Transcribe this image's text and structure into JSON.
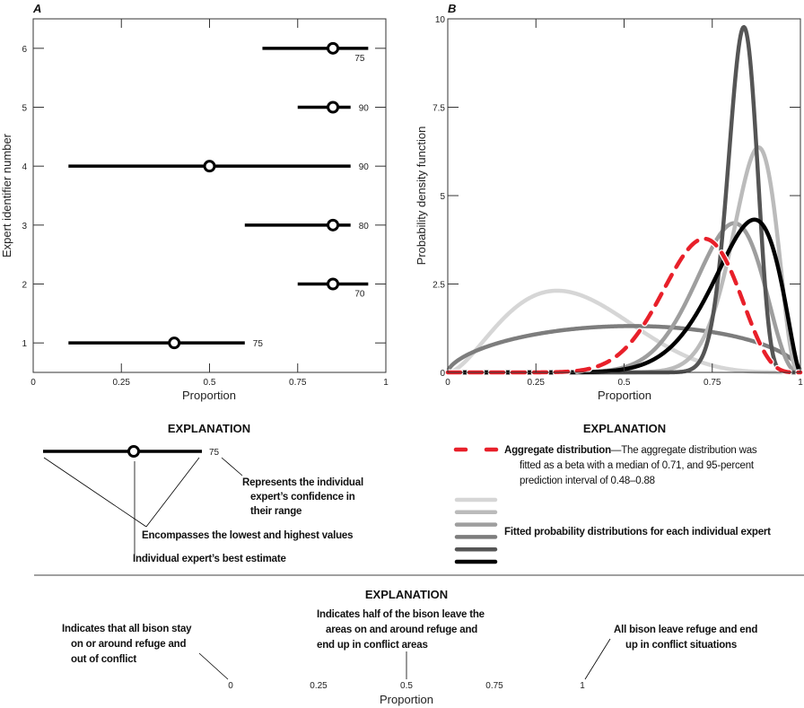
{
  "chart_data": [
    {
      "panel_label": "A",
      "type": "interval",
      "xlabel": "Proportion",
      "ylabel": "Expert identifier number",
      "xlim": [
        0,
        1
      ],
      "ylim": [
        0.5,
        6.5
      ],
      "xticks": [
        "0",
        "0.25",
        "0.5",
        "0.75",
        "1"
      ],
      "yticks": [
        "1",
        "2",
        "3",
        "4",
        "5",
        "6"
      ],
      "experts": [
        {
          "id": 1,
          "low": 0.1,
          "high": 0.6,
          "best": 0.4,
          "confidence": "75"
        },
        {
          "id": 2,
          "low": 0.75,
          "high": 0.95,
          "best": 0.85,
          "confidence": "70"
        },
        {
          "id": 3,
          "low": 0.6,
          "high": 0.9,
          "best": 0.85,
          "confidence": "80"
        },
        {
          "id": 4,
          "low": 0.1,
          "high": 0.9,
          "best": 0.5,
          "confidence": "90"
        },
        {
          "id": 5,
          "low": 0.75,
          "high": 0.9,
          "best": 0.85,
          "confidence": "90"
        },
        {
          "id": 6,
          "low": 0.65,
          "high": 0.95,
          "best": 0.85,
          "confidence": "75"
        }
      ]
    },
    {
      "panel_label": "B",
      "type": "line",
      "xlabel": "Proportion",
      "ylabel": "Probability density function",
      "xlim": [
        0,
        1
      ],
      "ylim": [
        0,
        10
      ],
      "xticks": [
        "0",
        "0.25",
        "0.5",
        "0.75",
        "1"
      ],
      "yticks": [
        "0",
        "2.5",
        "5",
        "7.5",
        "10"
      ],
      "grid": false,
      "distribution": "beta",
      "series": [
        {
          "color": "#d6d6d6",
          "alpha": 2.8,
          "beta": 5.0,
          "mode": 0.31,
          "peak": 2.4
        },
        {
          "color": "#7d7d7d",
          "alpha": 1.6,
          "beta": 1.55,
          "mode": 0.52,
          "peak": 1.5
        },
        {
          "color": "#9e9e9e",
          "alpha": 14,
          "beta": 4,
          "mode": 0.81,
          "peak": 4.3
        },
        {
          "color": "#bbbbbb",
          "alpha": 24,
          "beta": 4.1,
          "mode": 0.88,
          "peak": 6.1
        },
        {
          "color": "#555555",
          "alpha": 68,
          "beta": 13.8,
          "mode": 0.84,
          "peak": 9.7
        },
        {
          "color": "#000000",
          "alpha": 12,
          "beta": 2.65,
          "mode": 0.87,
          "peak": 4.3
        },
        {
          "name": "Aggregate distribution",
          "color": "#e8202a",
          "dashed": true,
          "alpha": 13,
          "beta": 5.5,
          "mode": 0.73,
          "peak": 3.8,
          "median": 0.71,
          "interval_95": [
            0.48,
            0.88
          ]
        }
      ]
    }
  ],
  "explanation_a": {
    "title": "EXPLANATION",
    "sample_confidence": "75",
    "confidence_note": [
      "Represents the individual",
      "expert’s confidence in",
      "their range"
    ],
    "range_note": "Encompasses the lowest and highest values",
    "best_note": "Individual expert’s best estimate"
  },
  "explanation_b": {
    "title": "EXPLANATION",
    "aggregate_bold": "Aggregate distribution",
    "aggregate_text": [
      "—The aggregate distribution was",
      "fitted as a beta with a median of 0.71, and 95-percent",
      "prediction interval of 0.48–0.88"
    ],
    "swatch_colors": [
      "#d6d6d6",
      "#bbbbbb",
      "#9e9e9e",
      "#7d7d7d",
      "#555555",
      "#000000"
    ],
    "fitted_label": "Fitted probability distributions for each individual expert"
  },
  "explanation_c": {
    "title": "EXPLANATION",
    "left_note": [
      "Indicates that all bison stay",
      "on or around refuge and",
      "out of conflict"
    ],
    "middle_note": [
      "Indicates half of the bison leave the",
      "areas on and around refuge and",
      "end up in conflict areas"
    ],
    "right_note": [
      "All bison leave refuge and end",
      "up in conflict situations"
    ],
    "ticks": [
      "0",
      "0.25",
      "0.5",
      "0.75",
      "1"
    ],
    "axis_label": "Proportion"
  }
}
